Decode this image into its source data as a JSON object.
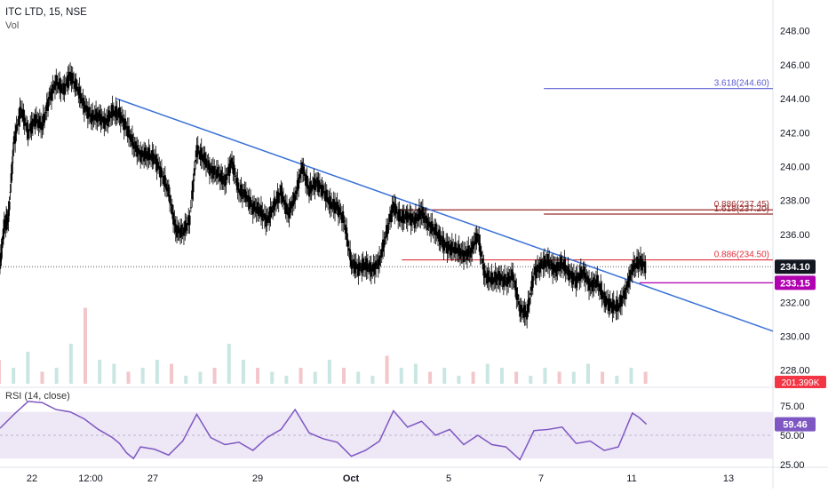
{
  "header": {
    "title": "ITC LTD, 15, NSE",
    "volume_label": "Vol",
    "rsi_label": "RSI (14, close)"
  },
  "colors": {
    "candle": "#000000",
    "trendline": "#3a72d8",
    "fib_high": "#9a2b2b",
    "fib_ext": "#5b5bd6",
    "support_line": "#e0303a",
    "magenta_line": "#b000b0",
    "rsi_line": "#7e57c2",
    "rsi_band": "#ede7f6",
    "vol_up": "#c9e6e2",
    "vol_down": "#f3c6cb",
    "price_tag": "#131722",
    "level_tag": "#b000b0",
    "vol_tag": "#f23645"
  },
  "chart_data": [
    {
      "type": "candlestick",
      "title": "ITC LTD, 15, NSE",
      "x_tick_labels": [
        "22",
        "12:00",
        "27",
        "29",
        "Oct",
        "5",
        "7",
        "11",
        "13"
      ],
      "y_ticks": [
        228,
        230,
        232,
        234,
        236,
        238,
        240,
        242,
        244,
        246,
        248
      ],
      "y_tick_labels": [
        "228.00",
        "230.00",
        "232.00",
        "234.00",
        "236.00",
        "238.00",
        "240.00",
        "242.00",
        "244.00",
        "246.00",
        "248.00"
      ],
      "ylim": [
        227.2,
        249.4
      ],
      "close_path": [
        [
          0,
          234.2
        ],
        [
          0.3,
          236.5
        ],
        [
          0.6,
          237.0
        ],
        [
          1,
          241.5
        ],
        [
          1.5,
          243.4
        ],
        [
          2,
          242.0
        ],
        [
          2.5,
          242.8
        ],
        [
          3,
          242.4
        ],
        [
          3.5,
          244.0
        ],
        [
          4,
          245.0
        ],
        [
          4.5,
          244.5
        ],
        [
          5,
          245.4
        ],
        [
          5.5,
          244.6
        ],
        [
          6,
          243.6
        ],
        [
          6.5,
          242.9
        ],
        [
          7,
          243.0
        ],
        [
          7.5,
          242.6
        ],
        [
          8,
          243.2
        ],
        [
          8.5,
          243.1
        ],
        [
          9,
          242.3
        ],
        [
          9.5,
          241.3
        ],
        [
          10,
          240.7
        ],
        [
          10.5,
          240.7
        ],
        [
          11,
          240.5
        ],
        [
          11.5,
          239.6
        ],
        [
          12,
          238.5
        ],
        [
          12.5,
          236.3
        ],
        [
          13,
          236.1
        ],
        [
          13.5,
          236.9
        ],
        [
          14,
          241.0
        ],
        [
          14.5,
          240.5
        ],
        [
          15,
          239.8
        ],
        [
          15.5,
          239.6
        ],
        [
          16,
          239.1
        ],
        [
          16.5,
          240.3
        ],
        [
          17,
          238.6
        ],
        [
          17.5,
          238.3
        ],
        [
          18,
          237.6
        ],
        [
          18.5,
          237.4
        ],
        [
          19,
          236.8
        ],
        [
          19.5,
          237.7
        ],
        [
          20,
          238.5
        ],
        [
          20.5,
          237.2
        ],
        [
          21,
          238.2
        ],
        [
          21.5,
          240.0
        ],
        [
          22,
          238.6
        ],
        [
          22.5,
          239.1
        ],
        [
          23,
          238.6
        ],
        [
          23.5,
          237.8
        ],
        [
          24,
          237.6
        ],
        [
          24.5,
          236.8
        ],
        [
          25,
          234.3
        ],
        [
          25.5,
          234.0
        ],
        [
          26,
          234.2
        ],
        [
          26.5,
          233.9
        ],
        [
          27,
          234.4
        ],
        [
          27.5,
          236.1
        ],
        [
          28,
          237.7
        ],
        [
          28.5,
          236.9
        ],
        [
          29,
          237.1
        ],
        [
          29.5,
          236.8
        ],
        [
          30,
          237.3
        ],
        [
          30.5,
          236.6
        ],
        [
          31,
          236.2
        ],
        [
          31.5,
          235.5
        ],
        [
          32,
          235.2
        ],
        [
          32.5,
          235.1
        ],
        [
          33,
          234.8
        ],
        [
          33.5,
          235.0
        ],
        [
          34,
          236.0
        ],
        [
          34.5,
          233.6
        ],
        [
          35,
          233.3
        ],
        [
          35.5,
          233.5
        ],
        [
          36,
          233.2
        ],
        [
          36.5,
          233.6
        ],
        [
          37,
          231.6
        ],
        [
          37.5,
          231.3
        ],
        [
          38,
          233.7
        ],
        [
          38.5,
          234.2
        ],
        [
          39,
          234.4
        ],
        [
          39.5,
          233.9
        ],
        [
          40,
          234.3
        ],
        [
          40.5,
          233.7
        ],
        [
          41,
          233.3
        ],
        [
          41.5,
          233.8
        ],
        [
          42,
          233.0
        ],
        [
          42.5,
          233.2
        ],
        [
          43,
          232.2
        ],
        [
          43.5,
          231.8
        ],
        [
          44,
          231.7
        ],
        [
          44.5,
          232.6
        ],
        [
          45,
          234.0
        ],
        [
          45.5,
          234.4
        ],
        [
          46,
          234.1
        ]
      ],
      "trendline": {
        "from": [
          8.3,
          244.0
        ],
        "to": [
          55,
          230.3
        ]
      },
      "levels": [
        {
          "name": "fib-3.618",
          "label": "3.618(244.60)",
          "price": 244.6,
          "x_from": 38.7,
          "x_to": 55
        },
        {
          "name": "fib-0.886-high",
          "label": "0.886(237.45)",
          "price": 237.45,
          "x_from": 28.0,
          "x_to": 55
        },
        {
          "name": "fib-1.618",
          "label": "1.618(237.20)",
          "price": 237.2,
          "x_from": 38.7,
          "x_to": 55
        },
        {
          "name": "fib-0.886-low",
          "label": "0.886(234.50)",
          "price": 234.5,
          "x_from": 28.6,
          "x_to": 55
        },
        {
          "name": "magenta-level",
          "label": "233.15",
          "price": 233.15,
          "x_from": 45.5,
          "x_to": 55
        }
      ],
      "price_tags": [
        {
          "label": "234.10",
          "price": 234.1
        },
        {
          "label": "233.15",
          "price": 233.15
        }
      ]
    },
    {
      "type": "bar",
      "title": "Vol",
      "tag_label": "201.399K",
      "values": [
        0.3,
        0.2,
        0.4,
        0.15,
        0.2,
        0.5,
        0.95,
        0.3,
        0.25,
        0.15,
        0.2,
        0.3,
        0.25,
        0.1,
        0.15,
        0.2,
        0.5,
        0.3,
        0.2,
        0.15,
        0.1,
        0.2,
        0.15,
        0.3,
        0.2,
        0.15,
        0.1,
        0.35,
        0.2,
        0.25,
        0.15,
        0.2,
        0.1,
        0.15,
        0.25,
        0.2,
        0.15,
        0.1,
        0.2,
        0.15,
        0.15,
        0.25,
        0.15,
        0.1,
        0.2,
        0.15
      ]
    },
    {
      "type": "line",
      "title": "RSI (14, close)",
      "y_ticks": [
        25,
        50,
        75
      ],
      "y_tick_labels": [
        "25.00",
        "50.00",
        "75.00"
      ],
      "ylim": [
        18,
        82
      ],
      "band": [
        30,
        70
      ],
      "current_label": "59.46",
      "current": 59.46,
      "values": [
        [
          0,
          56
        ],
        [
          1,
          68
        ],
        [
          2,
          79
        ],
        [
          3,
          78
        ],
        [
          4,
          72
        ],
        [
          5,
          70
        ],
        [
          6,
          64
        ],
        [
          7,
          55
        ],
        [
          8,
          48
        ],
        [
          8.5,
          43
        ],
        [
          9,
          35
        ],
        [
          9.5,
          30
        ],
        [
          10,
          40
        ],
        [
          11,
          38
        ],
        [
          12,
          33
        ],
        [
          13,
          45
        ],
        [
          14,
          68
        ],
        [
          15,
          48
        ],
        [
          16,
          42
        ],
        [
          17,
          44
        ],
        [
          18,
          37
        ],
        [
          19,
          48
        ],
        [
          20,
          55
        ],
        [
          21,
          72
        ],
        [
          22,
          52
        ],
        [
          23,
          47
        ],
        [
          24,
          44
        ],
        [
          25,
          32
        ],
        [
          26,
          37
        ],
        [
          27,
          45
        ],
        [
          28,
          71
        ],
        [
          29,
          57
        ],
        [
          30,
          62
        ],
        [
          31,
          50
        ],
        [
          32,
          55
        ],
        [
          33,
          42
        ],
        [
          34,
          50
        ],
        [
          35,
          42
        ],
        [
          36,
          40
        ],
        [
          37,
          29
        ],
        [
          38,
          54
        ],
        [
          39,
          55
        ],
        [
          40,
          57
        ],
        [
          41,
          43
        ],
        [
          42,
          45
        ],
        [
          43,
          37
        ],
        [
          44,
          40
        ],
        [
          45,
          69
        ],
        [
          45.5,
          65
        ],
        [
          46,
          59.46
        ]
      ]
    }
  ]
}
